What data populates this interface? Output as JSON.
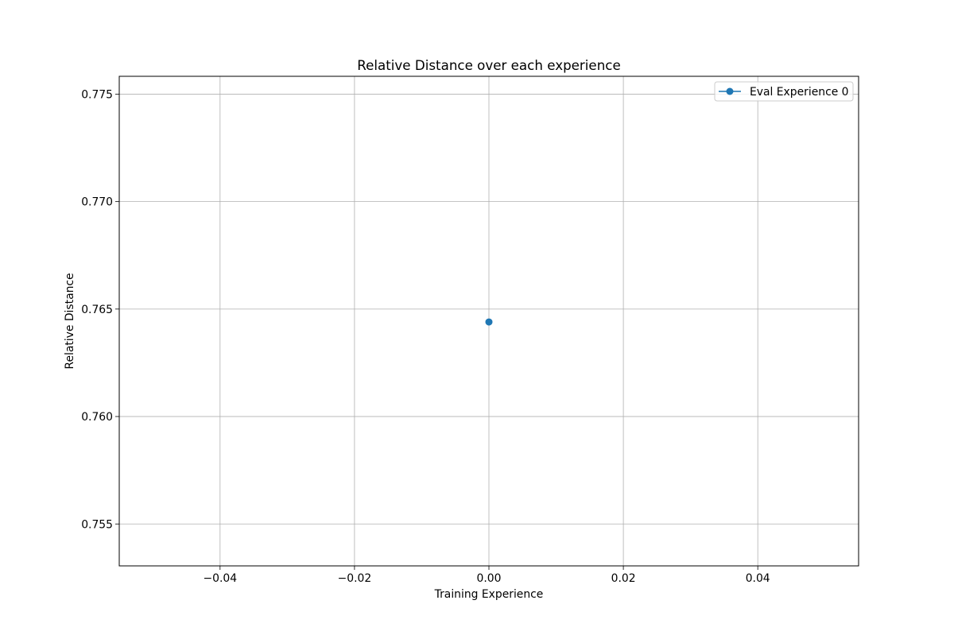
{
  "chart_data": {
    "type": "line",
    "title": "Relative Distance over each experience",
    "xlabel": "Training Experience",
    "ylabel": "Relative Distance",
    "xlim": [
      -0.055,
      0.055
    ],
    "ylim": [
      0.75305,
      0.77583
    ],
    "x_ticks": [
      -0.04,
      -0.02,
      0.0,
      0.02,
      0.04
    ],
    "x_tick_labels": [
      "−0.04",
      "−0.02",
      "0.00",
      "0.02",
      "0.04"
    ],
    "y_ticks": [
      0.755,
      0.76,
      0.765,
      0.77,
      0.775
    ],
    "y_tick_labels": [
      "0.755",
      "0.760",
      "0.765",
      "0.770",
      "0.775"
    ],
    "grid": true,
    "legend_position": "top-right",
    "series": [
      {
        "name": "Eval Experience 0",
        "color": "#1f77b4",
        "marker": "circle",
        "x": [
          0.0
        ],
        "y": [
          0.7644
        ]
      }
    ]
  }
}
